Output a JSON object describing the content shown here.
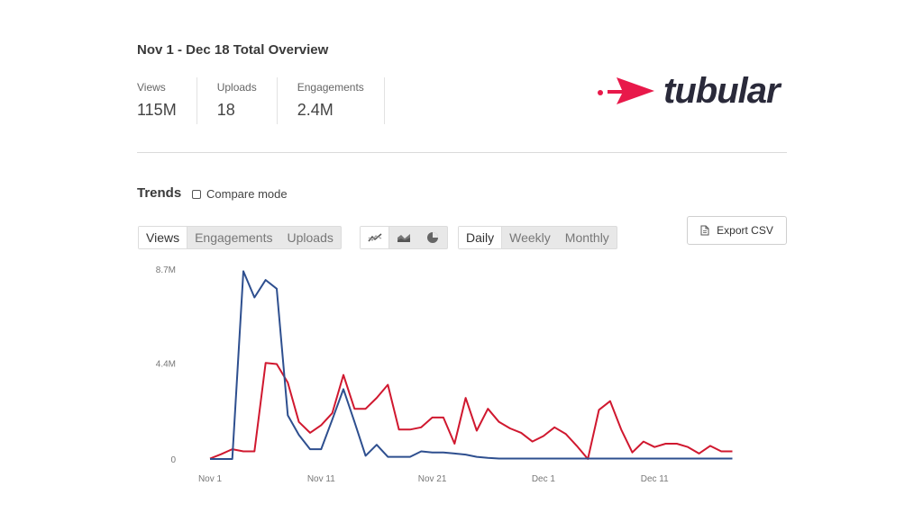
{
  "overview": {
    "title": "Nov 1 - Dec 18 Total Overview",
    "stats": [
      {
        "label": "Views",
        "value": "115M"
      },
      {
        "label": "Uploads",
        "value": "18"
      },
      {
        "label": "Engagements",
        "value": "2.4M"
      }
    ]
  },
  "logo": {
    "text": "tubular",
    "color": "#e8194a"
  },
  "trends": {
    "title": "Trends",
    "compare_label": "Compare mode",
    "metric_tabs": [
      "Views",
      "Engagements",
      "Uploads"
    ],
    "chart_type_icons": [
      "line-chart-icon",
      "area-chart-icon",
      "pie-chart-icon"
    ],
    "period_tabs": [
      "Daily",
      "Weekly",
      "Monthly"
    ],
    "export_label": "Export CSV"
  },
  "chart_data": {
    "type": "line",
    "title": "",
    "xlabel": "",
    "ylabel": "",
    "y_ticks": [
      {
        "label": "8.7M",
        "value": 8.7
      },
      {
        "label": "4.4M",
        "value": 4.4
      },
      {
        "label": "0",
        "value": 0
      }
    ],
    "ylim": [
      0,
      8.7
    ],
    "x_ticks": [
      {
        "label": "Nov 1",
        "day": 0
      },
      {
        "label": "Nov 11",
        "day": 10
      },
      {
        "label": "Nov 21",
        "day": 20
      },
      {
        "label": "Dec 1",
        "day": 30
      },
      {
        "label": "Dec 11",
        "day": 40
      }
    ],
    "grid": false,
    "legend": "none",
    "series": [
      {
        "color": "#d0182f",
        "x": [
          "2024-11-01",
          "2024-11-02",
          "2024-11-03",
          "2024-11-04",
          "2024-11-05",
          "2024-11-06",
          "2024-11-07",
          "2024-11-08",
          "2024-11-09",
          "2024-11-10",
          "2024-11-11",
          "2024-11-12",
          "2024-11-13",
          "2024-11-14",
          "2024-11-15",
          "2024-11-16",
          "2024-11-17",
          "2024-11-18",
          "2024-11-19",
          "2024-11-20",
          "2024-11-21",
          "2024-11-22",
          "2024-11-23",
          "2024-11-24",
          "2024-11-25",
          "2024-11-26",
          "2024-11-27",
          "2024-11-28",
          "2024-11-29",
          "2024-11-30",
          "2024-12-01",
          "2024-12-02",
          "2024-12-03",
          "2024-12-04",
          "2024-12-05",
          "2024-12-06",
          "2024-12-07",
          "2024-12-08",
          "2024-12-09",
          "2024-12-10",
          "2024-12-11",
          "2024-12-12",
          "2024-12-13",
          "2024-12-14",
          "2024-12-15",
          "2024-12-16",
          "2024-12-17",
          "2024-12-18"
        ],
        "values": [
          0.02,
          0.22,
          0.45,
          0.35,
          0.35,
          4.4,
          4.35,
          3.5,
          1.7,
          1.2,
          1.55,
          2.1,
          3.85,
          2.3,
          2.3,
          2.8,
          3.4,
          1.35,
          1.35,
          1.45,
          1.9,
          1.9,
          0.7,
          2.8,
          1.3,
          2.3,
          1.7,
          1.4,
          1.2,
          0.8,
          1.05,
          1.45,
          1.15,
          0.6,
          0.0,
          2.25,
          2.65,
          1.35,
          0.3,
          0.8,
          0.55,
          0.7,
          0.7,
          0.55,
          0.25,
          0.6,
          0.35,
          0.35
        ]
      },
      {
        "color": "#2e4f8f",
        "x": [
          "2024-11-01",
          "2024-11-02",
          "2024-11-03",
          "2024-11-04",
          "2024-11-05",
          "2024-11-06",
          "2024-11-07",
          "2024-11-08",
          "2024-11-09",
          "2024-11-10",
          "2024-11-11",
          "2024-11-12",
          "2024-11-13",
          "2024-11-14",
          "2024-11-15",
          "2024-11-16",
          "2024-11-17",
          "2024-11-18",
          "2024-11-19",
          "2024-11-20",
          "2024-11-21",
          "2024-11-22",
          "2024-11-23",
          "2024-11-24",
          "2024-11-25",
          "2024-11-26",
          "2024-11-27",
          "2024-11-28",
          "2024-11-29",
          "2024-11-30",
          "2024-12-01",
          "2024-12-02",
          "2024-12-03",
          "2024-12-04",
          "2024-12-05",
          "2024-12-06",
          "2024-12-07",
          "2024-12-08",
          "2024-12-09",
          "2024-12-10",
          "2024-12-11",
          "2024-12-12",
          "2024-12-13",
          "2024-12-14",
          "2024-12-15",
          "2024-12-16",
          "2024-12-17",
          "2024-12-18"
        ],
        "values": [
          0.0,
          0.0,
          0.0,
          8.6,
          7.4,
          8.2,
          7.8,
          2.0,
          1.1,
          0.45,
          0.45,
          1.8,
          3.2,
          1.7,
          0.15,
          0.65,
          0.1,
          0.1,
          0.1,
          0.35,
          0.3,
          0.3,
          0.25,
          0.2,
          0.1,
          0.05,
          0.02,
          0.02,
          0.02,
          0.02,
          0.02,
          0.02,
          0.02,
          0.02,
          0.02,
          0.02,
          0.02,
          0.02,
          0.02,
          0.02,
          0.02,
          0.02,
          0.02,
          0.02,
          0.02,
          0.02,
          0.02,
          0.02
        ]
      }
    ]
  }
}
